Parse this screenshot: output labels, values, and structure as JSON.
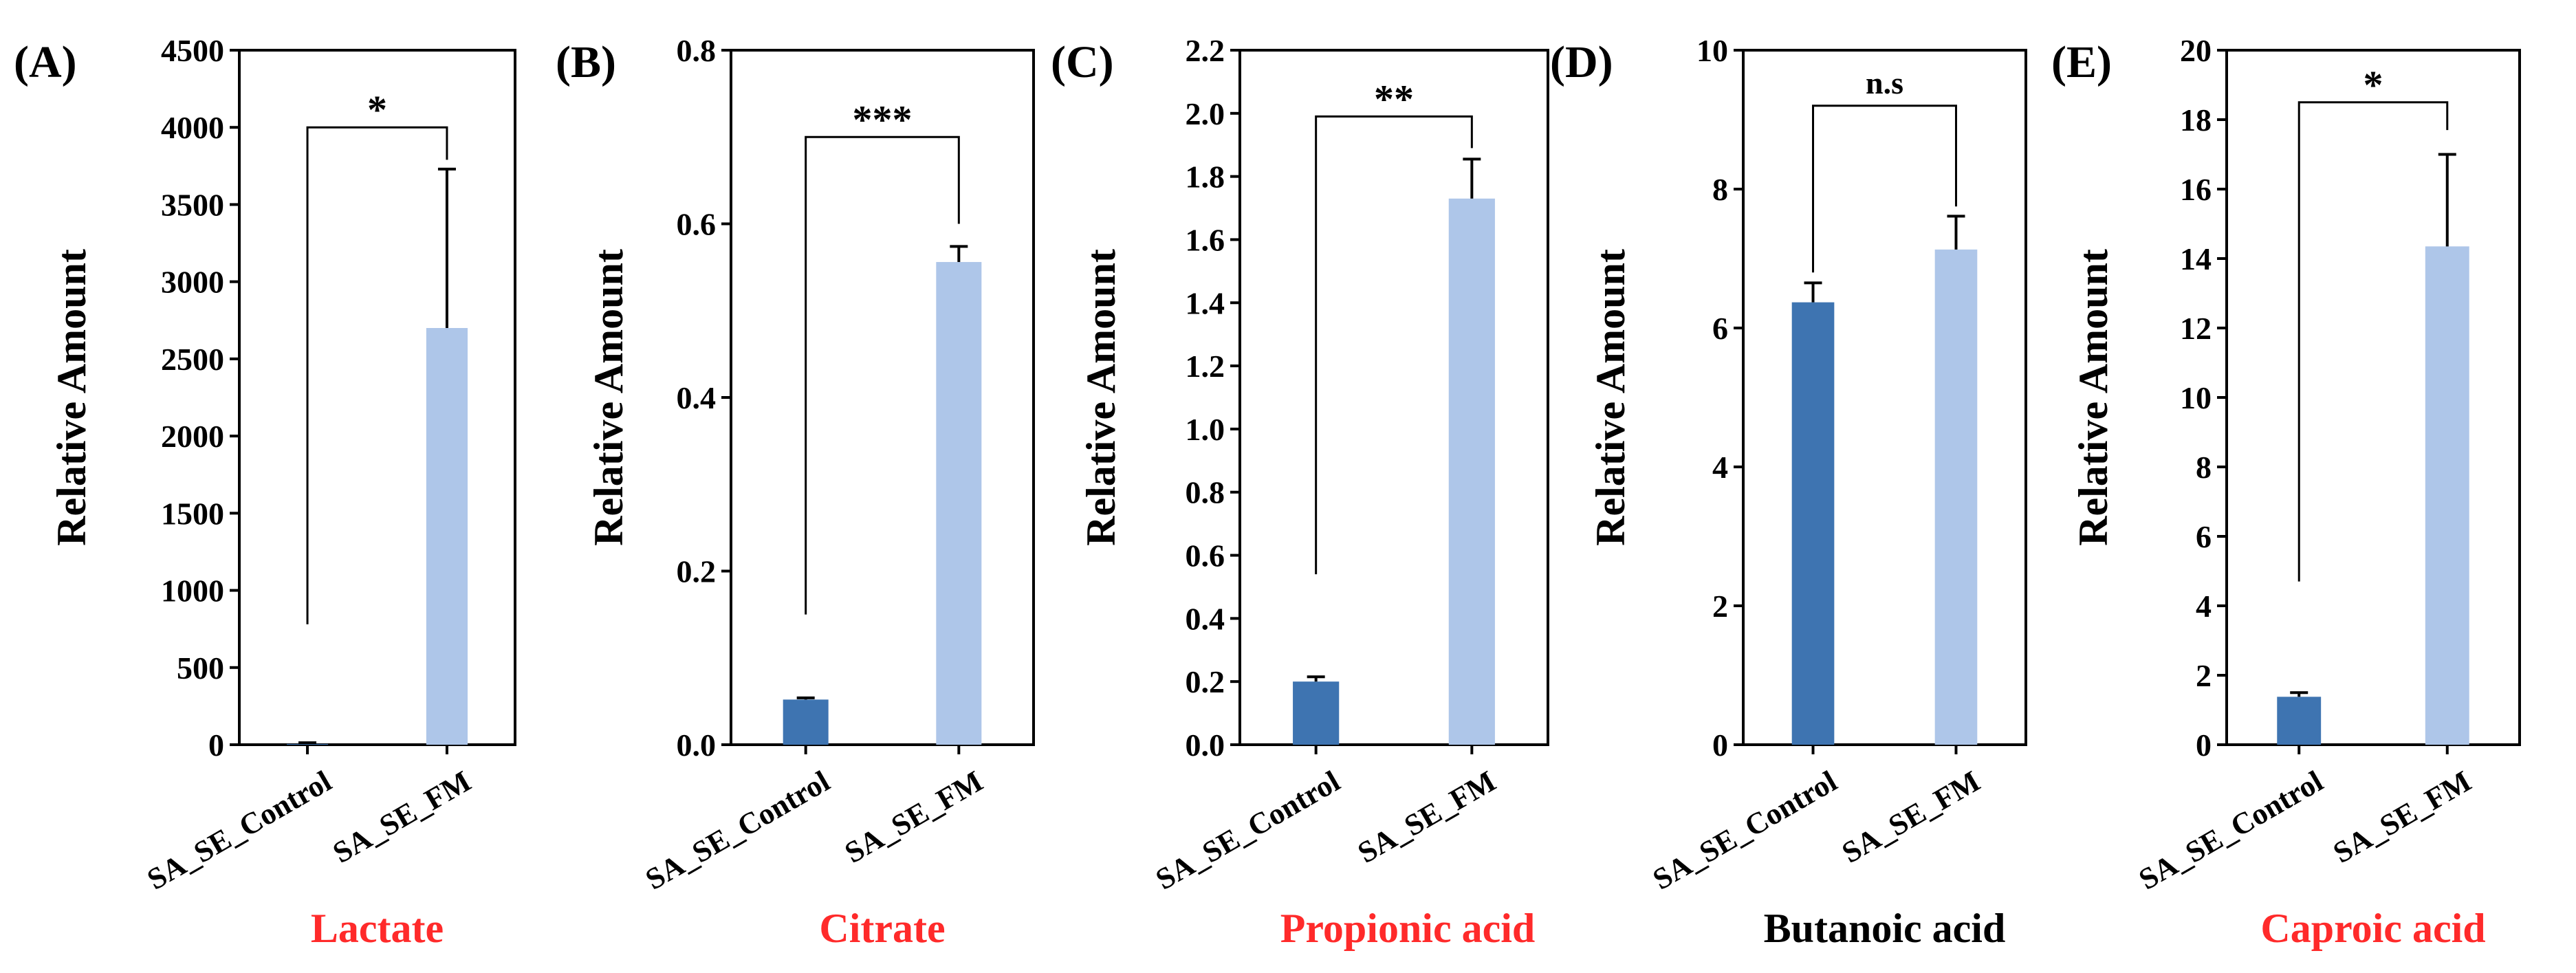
{
  "chart_data": [
    {
      "type": "bar",
      "panel_label": "(A)",
      "compound": "Lactate",
      "compound_color": "#ff2a2a",
      "ylabel": "Relative Amount",
      "categories": [
        "SA_SE_Control",
        "SA_SE_FM"
      ],
      "values": [
        5,
        2700
      ],
      "errors": [
        8,
        1030
      ],
      "ylim": [
        0,
        4500
      ],
      "yticks": [
        {
          "value": 0,
          "label": "0"
        },
        {
          "value": 500,
          "label": "500"
        },
        {
          "value": 1000,
          "label": "1000"
        },
        {
          "value": 1500,
          "label": "1500"
        },
        {
          "value": 2000,
          "label": "2000"
        },
        {
          "value": 2500,
          "label": "2500"
        },
        {
          "value": 3000,
          "label": "3000"
        },
        {
          "value": 3500,
          "label": "3500"
        },
        {
          "value": 4000,
          "label": "4000"
        },
        {
          "value": 4500,
          "label": "4500"
        }
      ],
      "significance": "*",
      "bracket": {
        "y": 4000,
        "left_end": 780,
        "right_end": 3790
      }
    },
    {
      "type": "bar",
      "panel_label": "(B)",
      "compound": "Citrate",
      "compound_color": "#ff2a2a",
      "ylabel": "Relative Amount",
      "categories": [
        "SA_SE_Control",
        "SA_SE_FM"
      ],
      "values": [
        0.052,
        0.556
      ],
      "errors": [
        0.002,
        0.018
      ],
      "ylim": [
        0,
        0.8
      ],
      "yticks": [
        {
          "value": 0,
          "label": "0.0"
        },
        {
          "value": 0.2,
          "label": "0.2"
        },
        {
          "value": 0.4,
          "label": "0.4"
        },
        {
          "value": 0.6,
          "label": "0.6"
        },
        {
          "value": 0.8,
          "label": "0.8"
        }
      ],
      "significance": "***",
      "bracket": {
        "y": 0.7,
        "left_end": 0.15,
        "right_end": 0.6
      }
    },
    {
      "type": "bar",
      "panel_label": "(C)",
      "compound": "Propionic acid",
      "compound_color": "#ff2a2a",
      "ylabel": "Relative Amount",
      "categories": [
        "SA_SE_Control",
        "SA_SE_FM"
      ],
      "values": [
        0.2,
        1.73
      ],
      "errors": [
        0.015,
        0.125
      ],
      "ylim": [
        0,
        2.2
      ],
      "yticks": [
        {
          "value": 0,
          "label": "0.0"
        },
        {
          "value": 0.2,
          "label": "0.2"
        },
        {
          "value": 0.4,
          "label": "0.4"
        },
        {
          "value": 0.6,
          "label": "0.6"
        },
        {
          "value": 0.8,
          "label": "0.8"
        },
        {
          "value": 1.0,
          "label": "1.0"
        },
        {
          "value": 1.2,
          "label": "1.2"
        },
        {
          "value": 1.4,
          "label": "1.4"
        },
        {
          "value": 1.6,
          "label": "1.6"
        },
        {
          "value": 1.8,
          "label": "1.8"
        },
        {
          "value": 2.0,
          "label": "2.0"
        },
        {
          "value": 2.2,
          "label": "2.2"
        }
      ],
      "significance": "**",
      "bracket": {
        "y": 1.99,
        "left_end": 0.54,
        "right_end": 1.89
      }
    },
    {
      "type": "bar",
      "panel_label": "(D)",
      "compound": "Butanoic acid",
      "compound_color": "#000000",
      "ylabel": "Relative Amount",
      "categories": [
        "SA_SE_Control",
        "SA_SE_FM"
      ],
      "values": [
        6.37,
        7.13
      ],
      "errors": [
        0.28,
        0.48
      ],
      "ylim": [
        0,
        10
      ],
      "yticks": [
        {
          "value": 0,
          "label": "0"
        },
        {
          "value": 2,
          "label": "2"
        },
        {
          "value": 4,
          "label": "4"
        },
        {
          "value": 6,
          "label": "6"
        },
        {
          "value": 8,
          "label": "8"
        },
        {
          "value": 10,
          "label": "10"
        }
      ],
      "significance": "n.s",
      "bracket": {
        "y": 9.2,
        "left_end": 6.8,
        "right_end": 7.75
      }
    },
    {
      "type": "bar",
      "panel_label": "(E)",
      "compound": "Caproic acid",
      "compound_color": "#ff2a2a",
      "ylabel": "Relative Amount",
      "categories": [
        "SA_SE_Control",
        "SA_SE_FM"
      ],
      "values": [
        1.38,
        14.35
      ],
      "errors": [
        0.12,
        2.65
      ],
      "ylim": [
        0,
        20
      ],
      "yticks": [
        {
          "value": 0,
          "label": "0"
        },
        {
          "value": 2,
          "label": "2"
        },
        {
          "value": 4,
          "label": "4"
        },
        {
          "value": 6,
          "label": "6"
        },
        {
          "value": 8,
          "label": "8"
        },
        {
          "value": 10,
          "label": "10"
        },
        {
          "value": 12,
          "label": "12"
        },
        {
          "value": 14,
          "label": "14"
        },
        {
          "value": 16,
          "label": "16"
        },
        {
          "value": 18,
          "label": "18"
        },
        {
          "value": 20,
          "label": "20"
        }
      ],
      "significance": "*",
      "bracket": {
        "y": 18.5,
        "left_end": 4.7,
        "right_end": 17.7
      }
    }
  ],
  "colors": {
    "control_bar": "#3e74b1",
    "fm_bar": "#aec6e9",
    "axis": "#000000"
  }
}
